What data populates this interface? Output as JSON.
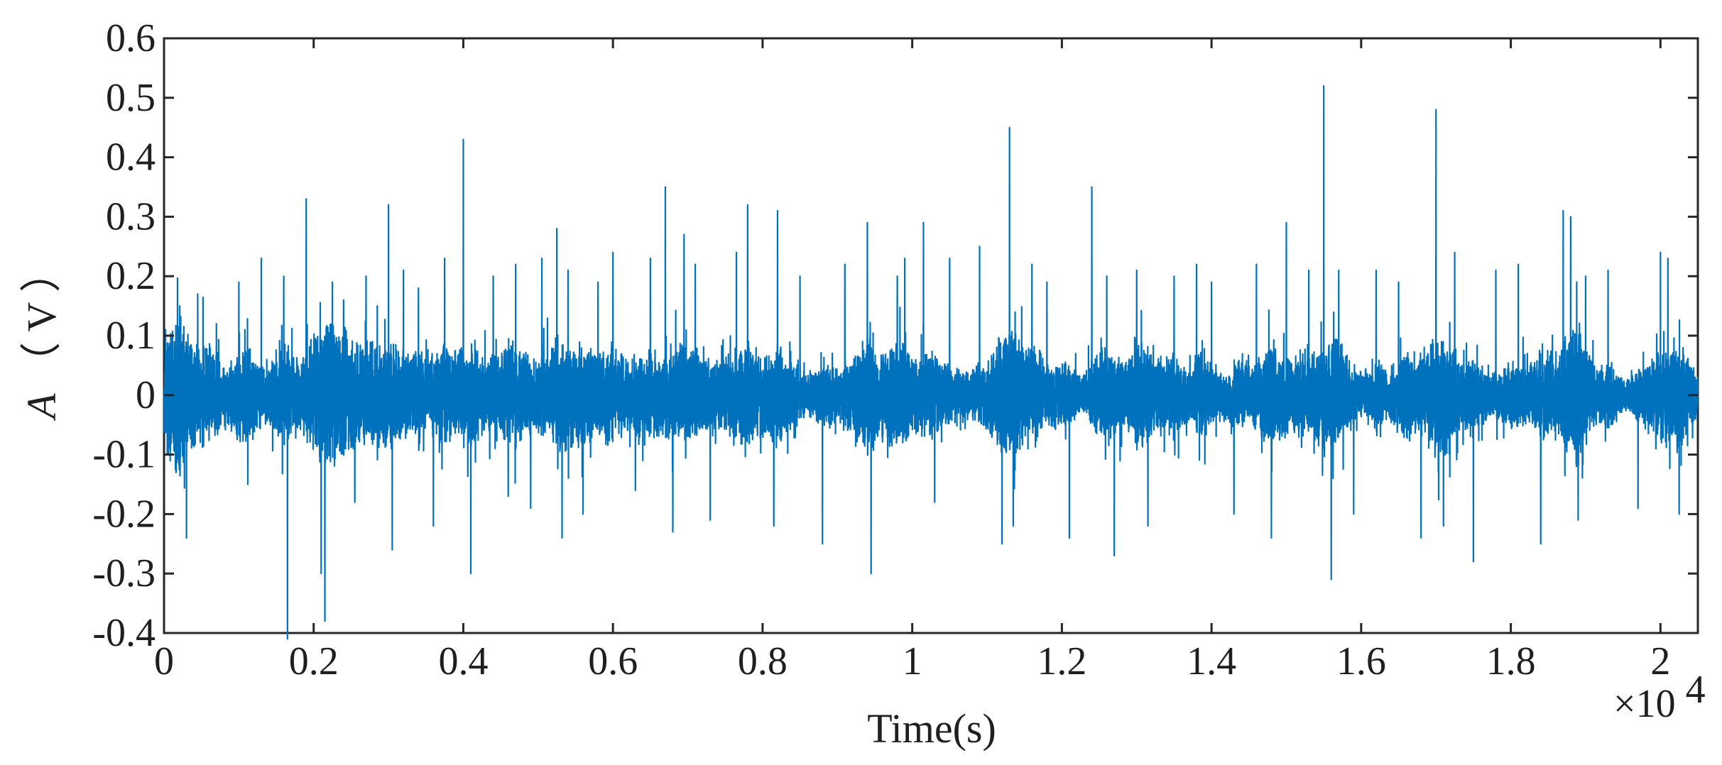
{
  "chart_data": {
    "type": "line",
    "title": "",
    "xlabel": "Time(s)",
    "ylabel": "A（V）",
    "ylabel_parts": {
      "main": "A",
      "paren_open": "（",
      "unit": "V",
      "paren_close": "）"
    },
    "xlim": [
      0,
      20500
    ],
    "ylim": [
      -0.4,
      0.6
    ],
    "x_ticks": [
      0,
      2000,
      4000,
      6000,
      8000,
      10000,
      12000,
      14000,
      16000,
      18000,
      20000
    ],
    "x_tick_labels": [
      "0",
      "0.2",
      "0.4",
      "0.6",
      "0.8",
      "1",
      "1.2",
      "1.4",
      "1.6",
      "1.8",
      "2"
    ],
    "x_exponent_label": "×10",
    "x_exponent_power": "4",
    "y_ticks": [
      -0.4,
      -0.3,
      -0.2,
      -0.1,
      0,
      0.1,
      0.2,
      0.3,
      0.4,
      0.5,
      0.6
    ],
    "y_tick_labels": [
      "-0.4",
      "-0.3",
      "-0.2",
      "-0.1",
      "0",
      "0.1",
      "0.2",
      "0.3",
      "0.4",
      "0.5",
      "0.6"
    ],
    "grid": false,
    "legend": "none",
    "series": [
      {
        "color": "#0072BD",
        "n_points": 20500,
        "baseline_amplitude": 0.04,
        "x": [
          20,
          160,
          210,
          300,
          450,
          700,
          1000,
          1120,
          1300,
          1600,
          1650,
          1900,
          2100,
          2150,
          2250,
          2400,
          2550,
          2700,
          2850,
          3000,
          3050,
          3200,
          3400,
          3600,
          3750,
          4000,
          4100,
          4400,
          4600,
          4700,
          4900,
          5050,
          5250,
          5320,
          5400,
          5600,
          5800,
          6000,
          6300,
          6500,
          6700,
          6800,
          6950,
          7100,
          7300,
          7650,
          7800,
          8150,
          8200,
          8500,
          8800,
          9100,
          9400,
          9450,
          9800,
          9900,
          10150,
          10300,
          10500,
          10900,
          11200,
          11300,
          11350,
          11600,
          11800,
          12100,
          12400,
          12600,
          12700,
          13000,
          13150,
          13500,
          13800,
          14000,
          14300,
          14600,
          14800,
          15000,
          15300,
          15500,
          15600,
          15700,
          15900,
          16200,
          16500,
          16800,
          17000,
          17100,
          17250,
          17500,
          17800,
          18100,
          18400,
          18700,
          18800,
          18900,
          19000,
          19300,
          19700,
          20000,
          20100,
          20250
        ],
        "y": [
          0.11,
          -0.13,
          0.15,
          -0.24,
          0.17,
          0.12,
          0.19,
          -0.15,
          0.23,
          0.2,
          -0.41,
          0.33,
          -0.3,
          -0.38,
          0.19,
          0.16,
          -0.18,
          0.2,
          0.15,
          0.32,
          -0.26,
          0.21,
          0.18,
          -0.22,
          0.23,
          0.43,
          -0.3,
          0.2,
          -0.17,
          0.22,
          -0.19,
          0.23,
          0.28,
          -0.24,
          0.21,
          -0.2,
          0.19,
          0.24,
          -0.16,
          0.23,
          0.35,
          -0.23,
          0.27,
          0.22,
          -0.21,
          0.24,
          0.32,
          -0.22,
          0.31,
          0.2,
          -0.25,
          0.22,
          0.29,
          -0.3,
          0.2,
          0.23,
          0.29,
          -0.18,
          0.23,
          0.25,
          -0.25,
          0.45,
          -0.22,
          0.22,
          0.19,
          -0.24,
          0.35,
          0.2,
          -0.27,
          0.21,
          -0.22,
          0.2,
          0.22,
          0.19,
          -0.2,
          0.22,
          -0.24,
          0.29,
          0.21,
          0.52,
          -0.31,
          0.21,
          -0.2,
          0.21,
          0.19,
          -0.24,
          0.48,
          -0.22,
          0.24,
          -0.28,
          0.21,
          0.22,
          -0.25,
          0.31,
          0.3,
          -0.21,
          0.2,
          0.21,
          -0.19,
          0.24,
          0.23,
          -0.2
        ]
      }
    ]
  }
}
